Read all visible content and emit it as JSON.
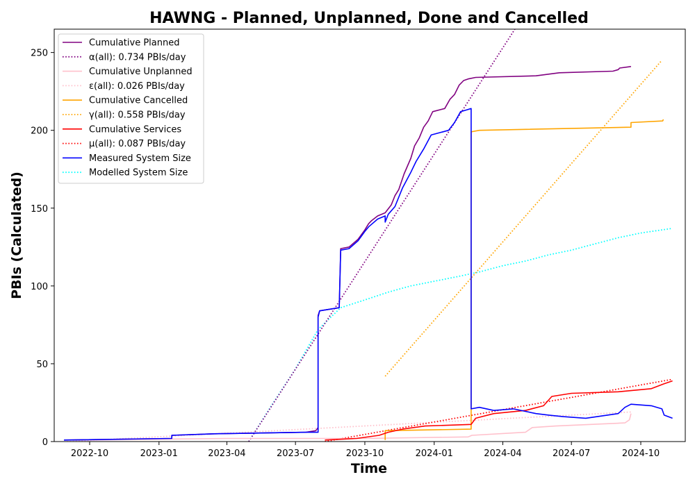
{
  "chart_data": {
    "type": "line",
    "title": "HAWNG - Planned, Unplanned, Done  and Cancelled",
    "xlabel": "Time",
    "ylabel": "PBIs (Calculated)",
    "xlim": [
      "2022-08-15",
      "2024-11-29"
    ],
    "ylim": [
      0,
      265
    ],
    "x_ticks": [
      "2022-10",
      "2023-01",
      "2023-04",
      "2023-07",
      "2023-10",
      "2024-01",
      "2024-04",
      "2024-07",
      "2024-10"
    ],
    "y_ticks": [
      0,
      50,
      100,
      150,
      200,
      250
    ],
    "grid": false,
    "legend_position": "top-left",
    "series": [
      {
        "name": "Cumulative Planned",
        "color": "#800080",
        "style": "solid",
        "points": [
          [
            "2022-08-28",
            1
          ],
          [
            "2023-01-18",
            2
          ],
          [
            "2023-01-18",
            4
          ],
          [
            "2023-03-15",
            5
          ],
          [
            "2023-07-15",
            6
          ],
          [
            "2023-07-28",
            7
          ],
          [
            "2023-07-31",
            9
          ],
          [
            "2023-07-31",
            81
          ],
          [
            "2023-08-02",
            84
          ],
          [
            "2023-08-28",
            86
          ],
          [
            "2023-08-30",
            124
          ],
          [
            "2023-09-10",
            125
          ],
          [
            "2023-09-22",
            130
          ],
          [
            "2023-10-01",
            136
          ],
          [
            "2023-10-06",
            140
          ],
          [
            "2023-10-10",
            142
          ],
          [
            "2023-10-18",
            145
          ],
          [
            "2023-10-28",
            147
          ],
          [
            "2023-11-05",
            152
          ],
          [
            "2023-11-10",
            158
          ],
          [
            "2023-11-15",
            162
          ],
          [
            "2023-11-22",
            172
          ],
          [
            "2023-12-01",
            182
          ],
          [
            "2023-12-06",
            190
          ],
          [
            "2023-12-12",
            195
          ],
          [
            "2023-12-18",
            202
          ],
          [
            "2023-12-24",
            206
          ],
          [
            "2023-12-30",
            212
          ],
          [
            "2024-01-15",
            214
          ],
          [
            "2024-01-22",
            220
          ],
          [
            "2024-01-28",
            223
          ],
          [
            "2024-02-03",
            229
          ],
          [
            "2024-02-09",
            232
          ],
          [
            "2024-02-15",
            233
          ],
          [
            "2024-02-25",
            234
          ],
          [
            "2024-05-15",
            235
          ],
          [
            "2024-06-15",
            237
          ],
          [
            "2024-08-25",
            238
          ],
          [
            "2024-09-01",
            239
          ],
          [
            "2024-09-03",
            240
          ],
          [
            "2024-09-18",
            241
          ]
        ]
      },
      {
        "name": "α(all): 0.734 PBIs/day",
        "color": "#800080",
        "style": "dotted",
        "points": [
          [
            "2023-04-30",
            0
          ],
          [
            "2024-04-17",
            265
          ]
        ]
      },
      {
        "name": "Cumulative Unplanned",
        "color": "#ffc0cb",
        "style": "solid",
        "points": [
          [
            "2022-10-01",
            1
          ],
          [
            "2023-04-01",
            2
          ],
          [
            "2023-07-01",
            2
          ],
          [
            "2023-10-01",
            2
          ],
          [
            "2024-02-15",
            3
          ],
          [
            "2024-02-20",
            4
          ],
          [
            "2024-05-01",
            6
          ],
          [
            "2024-05-10",
            9
          ],
          [
            "2024-06-10",
            10
          ],
          [
            "2024-09-10",
            12
          ],
          [
            "2024-09-16",
            14
          ],
          [
            "2024-09-18",
            18
          ]
        ]
      },
      {
        "name": "ε(all): 0.026 PBIs/day",
        "color": "#ffc0cb",
        "style": "dotted",
        "points": [
          [
            "2022-09-01",
            0
          ],
          [
            "2024-09-18",
            19
          ]
        ]
      },
      {
        "name": "Cumulative Cancelled",
        "color": "#ffa500",
        "style": "solid",
        "points": [
          [
            "2023-10-28",
            1
          ],
          [
            "2023-10-28",
            7
          ],
          [
            "2024-02-19",
            8
          ],
          [
            "2024-02-19",
            199
          ],
          [
            "2024-03-01",
            200
          ],
          [
            "2024-09-18",
            202
          ],
          [
            "2024-09-18",
            205
          ],
          [
            "2024-10-30",
            206
          ],
          [
            "2024-10-31",
            207
          ]
        ]
      },
      {
        "name": "γ(all): 0.558 PBIs/day",
        "color": "#ffa500",
        "style": "dotted",
        "points": [
          [
            "2023-10-28",
            42
          ],
          [
            "2024-10-29",
            245
          ]
        ]
      },
      {
        "name": "Cumulative Services",
        "color": "#ff0000",
        "style": "solid",
        "points": [
          [
            "2023-08-09",
            1
          ],
          [
            "2023-09-20",
            2
          ],
          [
            "2023-10-20",
            4
          ],
          [
            "2023-11-01",
            6
          ],
          [
            "2023-11-20",
            8
          ],
          [
            "2023-12-20",
            10
          ],
          [
            "2024-02-19",
            11
          ],
          [
            "2024-02-25",
            15
          ],
          [
            "2024-03-20",
            18
          ],
          [
            "2024-05-01",
            20
          ],
          [
            "2024-05-25",
            23
          ],
          [
            "2024-06-05",
            29
          ],
          [
            "2024-07-01",
            31
          ],
          [
            "2024-09-01",
            32
          ],
          [
            "2024-10-15",
            34
          ],
          [
            "2024-10-31",
            37
          ],
          [
            "2024-11-12",
            39
          ]
        ]
      },
      {
        "name": "μ(all): 0.087 PBIs/day",
        "color": "#ff0000",
        "style": "dotted",
        "points": [
          [
            "2023-08-09",
            0
          ],
          [
            "2024-11-12",
            40
          ]
        ]
      },
      {
        "name": "Measured System Size",
        "color": "#0000ff",
        "style": "solid",
        "points": [
          [
            "2022-08-28",
            1
          ],
          [
            "2023-01-18",
            2
          ],
          [
            "2023-01-18",
            4
          ],
          [
            "2023-03-15",
            5
          ],
          [
            "2023-07-15",
            6
          ],
          [
            "2023-07-31",
            6
          ],
          [
            "2023-07-31",
            80
          ],
          [
            "2023-08-02",
            84
          ],
          [
            "2023-08-28",
            86
          ],
          [
            "2023-08-30",
            123
          ],
          [
            "2023-09-10",
            124
          ],
          [
            "2023-09-22",
            129
          ],
          [
            "2023-10-01",
            135
          ],
          [
            "2023-10-06",
            138
          ],
          [
            "2023-10-18",
            143
          ],
          [
            "2023-10-28",
            145
          ],
          [
            "2023-10-28",
            141
          ],
          [
            "2023-11-01",
            146
          ],
          [
            "2023-11-10",
            151
          ],
          [
            "2023-11-20",
            163
          ],
          [
            "2023-12-01",
            173
          ],
          [
            "2023-12-08",
            180
          ],
          [
            "2023-12-18",
            188
          ],
          [
            "2023-12-28",
            197
          ],
          [
            "2024-01-20",
            200
          ],
          [
            "2024-01-28",
            205
          ],
          [
            "2024-02-05",
            212
          ],
          [
            "2024-02-12",
            213
          ],
          [
            "2024-02-19",
            214
          ],
          [
            "2024-02-19",
            21
          ],
          [
            "2024-03-01",
            22
          ],
          [
            "2024-03-20",
            20
          ],
          [
            "2024-04-15",
            21
          ],
          [
            "2024-05-15",
            18
          ],
          [
            "2024-06-01",
            17
          ],
          [
            "2024-06-20",
            16
          ],
          [
            "2024-07-20",
            15
          ],
          [
            "2024-09-01",
            18
          ],
          [
            "2024-09-10",
            22
          ],
          [
            "2024-09-18",
            24
          ],
          [
            "2024-10-15",
            23
          ],
          [
            "2024-10-29",
            21
          ],
          [
            "2024-11-01",
            17
          ],
          [
            "2024-11-12",
            15
          ]
        ]
      },
      {
        "name": "Modelled System Size",
        "color": "#00ffff",
        "style": "dotted",
        "points": [
          [
            "2023-04-30",
            0
          ],
          [
            "2023-05-30",
            23
          ],
          [
            "2023-06-30",
            46
          ],
          [
            "2023-07-31",
            72
          ],
          [
            "2023-08-30",
            86
          ],
          [
            "2023-10-01",
            91
          ],
          [
            "2023-11-01",
            96
          ],
          [
            "2023-12-01",
            100
          ],
          [
            "2024-01-01",
            103
          ],
          [
            "2024-02-01",
            106
          ],
          [
            "2024-03-01",
            109
          ],
          [
            "2024-04-01",
            113
          ],
          [
            "2024-05-01",
            116
          ],
          [
            "2024-06-01",
            120
          ],
          [
            "2024-07-01",
            123
          ],
          [
            "2024-08-01",
            127
          ],
          [
            "2024-09-01",
            131
          ],
          [
            "2024-10-01",
            134
          ],
          [
            "2024-11-12",
            137
          ]
        ]
      }
    ]
  }
}
